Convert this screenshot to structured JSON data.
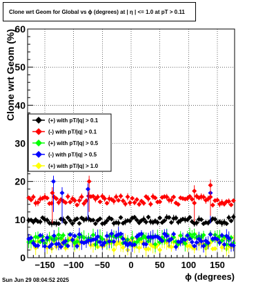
{
  "chart_data": {
    "type": "scatter",
    "title": "Clone wrt Geom for Global vs ϕ (degrees) at | η | <= 1.0 at pT > 0.11",
    "xlabel": "ϕ (degrees)",
    "ylabel": "Clone wrt Geom (%)",
    "xlim": [
      -180,
      180
    ],
    "ylim": [
      0,
      60
    ],
    "x_ticks": [
      -150,
      -100,
      -50,
      0,
      50,
      100,
      150
    ],
    "x_tick_labels": [
      "−150",
      "−100",
      "−50",
      "0",
      "50",
      "100",
      "150"
    ],
    "y_ticks": [
      0,
      10,
      20,
      30,
      40,
      50,
      60
    ],
    "grid": true,
    "legend_position": "middle-left",
    "series": [
      {
        "name": "(+) with pT/|q| > 0.1",
        "color": "#000000",
        "marker": "diamond",
        "level": 9.8,
        "spread": 0.9
      },
      {
        "name": "(-) with pT/|q| > 0.1",
        "color": "#ff0000",
        "marker": "diamond",
        "level": 15.0,
        "spread": 1.2
      },
      {
        "name": "(+) with pT/|q| > 0.5",
        "color": "#00ff00",
        "marker": "diamond",
        "level": 4.8,
        "spread": 1.4
      },
      {
        "name": "(-) with pT/|q| > 0.5",
        "color": "#0000ff",
        "marker": "diamond",
        "level": 4.6,
        "spread": 1.8
      },
      {
        "name": "(+) with pT/|q| > 1.0",
        "color": "#ffff00",
        "marker": "diamond",
        "level": 3.6,
        "spread": 1.6
      }
    ],
    "outliers": [
      {
        "series": 3,
        "x": -135,
        "y": 20
      },
      {
        "series": 1,
        "x": -73,
        "y": 20
      },
      {
        "series": 3,
        "x": -75,
        "y": 18
      },
      {
        "series": 1,
        "x": 110,
        "y": 17.5
      },
      {
        "series": 3,
        "x": 138,
        "y": 17
      },
      {
        "series": 1,
        "x": -137,
        "y": 17
      },
      {
        "series": 3,
        "x": -120,
        "y": 17
      },
      {
        "series": 1,
        "x": 138,
        "y": 19
      }
    ]
  },
  "footer": {
    "date": "Sun Jun 29 08:04:52 2025"
  }
}
